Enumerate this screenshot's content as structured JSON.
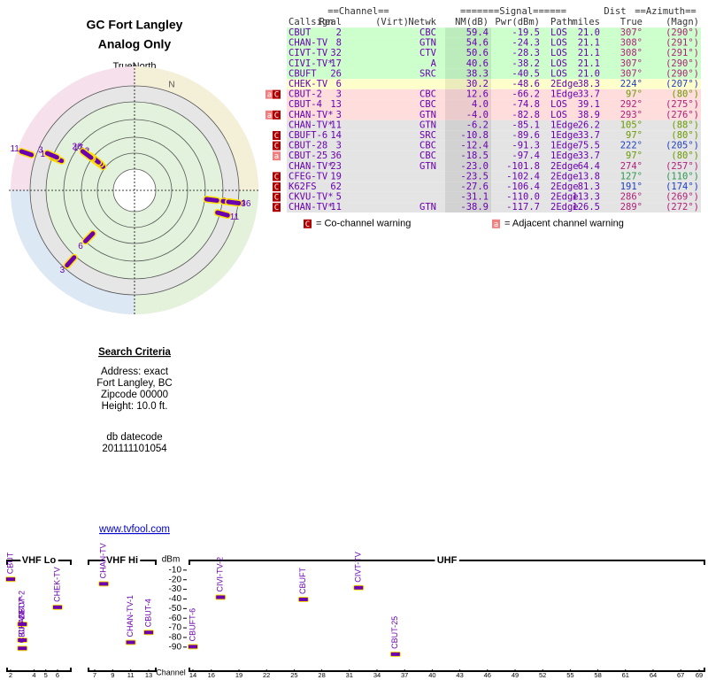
{
  "header": {
    "title": "GC Fort Langley",
    "subtitle": "Analog Only"
  },
  "polar": {
    "true_north": "TrueNorth",
    "north": "N",
    "markers": [
      {
        "label": "2",
        "azimuth": 307,
        "nm": 59.4
      },
      {
        "label": "8",
        "azimuth": 308,
        "nm": 54.6
      },
      {
        "label": "32",
        "azimuth": 308,
        "nm": 50.6
      },
      {
        "label": "17",
        "azimuth": 307,
        "nm": 40.6
      },
      {
        "label": "26",
        "azimuth": 307,
        "nm": 38.3
      },
      {
        "label": "6",
        "azimuth": 224,
        "nm": 30.2
      },
      {
        "label": "3",
        "azimuth": 97,
        "nm": 12.6
      },
      {
        "label": "13",
        "azimuth": 292,
        "nm": 4.0
      },
      {
        "label": "3",
        "azimuth": 293,
        "nm": -4.0
      },
      {
        "label": "11",
        "azimuth": 105,
        "nm": -6.2
      },
      {
        "label": "14",
        "azimuth": 97,
        "nm": -10.8
      },
      {
        "label": "3",
        "azimuth": 222,
        "nm": -12.4
      },
      {
        "label": "36",
        "azimuth": 97,
        "nm": -18.5
      },
      {
        "label": "11",
        "azimuth": 289,
        "nm": -38.9
      }
    ]
  },
  "table": {
    "group_headers": [
      "==Channel==",
      "=======Signal======",
      "Dist",
      "==Azimuth=="
    ],
    "headers": [
      "Callsign",
      "Real",
      "(Virt)",
      "Netwk",
      "NM(dB)",
      "Pwr(dBm)",
      "Path",
      "miles",
      "True",
      "(Magn)"
    ],
    "rows": [
      {
        "callsign": "CBUT",
        "real": "2",
        "netwk": "CBC",
        "nm": "59.4",
        "pwr": "-19.5",
        "path": "LOS",
        "dist": "21.0",
        "true_az": "307°",
        "magn_az": "(290°)",
        "color": "#ccffcc",
        "az_color": "#b0207a"
      },
      {
        "callsign": "CHAN-TV",
        "real": "8",
        "netwk": "GTN",
        "nm": "54.6",
        "pwr": "-24.3",
        "path": "LOS",
        "dist": "21.1",
        "true_az": "308°",
        "magn_az": "(291°)",
        "color": "#ccffcc",
        "az_color": "#b0207a"
      },
      {
        "callsign": "CIVT-TV",
        "real": "32",
        "netwk": "CTV",
        "nm": "50.6",
        "pwr": "-28.3",
        "path": "LOS",
        "dist": "21.1",
        "true_az": "308°",
        "magn_az": "(291°)",
        "color": "#ccffcc",
        "az_color": "#b0207a"
      },
      {
        "callsign": "CIVI-TV*",
        "real": "17",
        "netwk": "A",
        "nm": "40.6",
        "pwr": "-38.2",
        "path": "LOS",
        "dist": "21.1",
        "true_az": "307°",
        "magn_az": "(290°)",
        "color": "#ccffcc",
        "az_color": "#b0207a"
      },
      {
        "callsign": "CBUFT",
        "real": "26",
        "netwk": "SRC",
        "nm": "38.3",
        "pwr": "-40.5",
        "path": "LOS",
        "dist": "21.0",
        "true_az": "307°",
        "magn_az": "(290°)",
        "color": "#ccffcc",
        "az_color": "#b0207a"
      },
      {
        "callsign": "CHEK-TV",
        "real": "6",
        "nm": "30.2",
        "pwr": "-48.6",
        "path": "2Edge",
        "dist": "38.3",
        "true_az": "224°",
        "magn_az": "(207°)",
        "color": "#ffffcc",
        "az_color": "#1f3fbf"
      },
      {
        "callsign": "CBUT-2",
        "real": "3",
        "netwk": "CBC",
        "nm": "12.6",
        "pwr": "-66.2",
        "path": "1Edge",
        "dist": "33.7",
        "true_az": "97°",
        "magn_az": "(80°)",
        "color": "#ffdddd",
        "az_color": "#6a9a00",
        "warnings": [
          "a",
          "C"
        ]
      },
      {
        "callsign": "CBUT-4",
        "real": "13",
        "netwk": "CBC",
        "nm": "4.0",
        "pwr": "-74.8",
        "path": "LOS",
        "dist": "39.1",
        "true_az": "292°",
        "magn_az": "(275°)",
        "color": "#ffdddd",
        "az_color": "#b0207a"
      },
      {
        "callsign": "CHAN-TV*",
        "real": "3",
        "netwk": "GTN",
        "nm": "-4.0",
        "pwr": "-82.8",
        "path": "LOS",
        "dist": "38.9",
        "true_az": "293°",
        "magn_az": "(276°)",
        "color": "#ffdddd",
        "az_color": "#b0207a",
        "warnings": [
          "a",
          "C"
        ]
      },
      {
        "callsign": "CHAN-TV*",
        "real": "11",
        "netwk": "GTN",
        "nm": "-6.2",
        "pwr": "-85.1",
        "path": "1Edge",
        "dist": "26.2",
        "true_az": "105°",
        "magn_az": "(88°)",
        "color": "#e4e4e4",
        "az_color": "#6a9a00"
      },
      {
        "callsign": "CBUFT-6",
        "real": "14",
        "netwk": "SRC",
        "nm": "-10.8",
        "pwr": "-89.6",
        "path": "1Edge",
        "dist": "33.7",
        "true_az": "97°",
        "magn_az": "(80°)",
        "color": "#e4e4e4",
        "az_color": "#6a9a00",
        "warnings": [
          "C"
        ]
      },
      {
        "callsign": "CBUT-28",
        "real": "3",
        "netwk": "CBC",
        "nm": "-12.4",
        "pwr": "-91.3",
        "path": "1Edge",
        "dist": "75.5",
        "true_az": "222°",
        "magn_az": "(205°)",
        "color": "#e4e4e4",
        "az_color": "#1f3fbf",
        "warnings": [
          "C"
        ]
      },
      {
        "callsign": "CBUT-25",
        "real": "36",
        "netwk": "CBC",
        "nm": "-18.5",
        "pwr": "-97.4",
        "path": "1Edge",
        "dist": "33.7",
        "true_az": "97°",
        "magn_az": "(80°)",
        "color": "#e4e4e4",
        "az_color": "#6a9a00",
        "warnings": [
          "a"
        ]
      },
      {
        "callsign": "CHAN-TV*",
        "real": "23",
        "netwk": "GTN",
        "nm": "-23.0",
        "pwr": "-101.8",
        "path": "2Edge",
        "dist": "64.4",
        "true_az": "274°",
        "magn_az": "(257°)",
        "color": "#e4e4e4",
        "az_color": "#b0207a"
      },
      {
        "callsign": "CFEG-TV",
        "real": "19",
        "nm": "-23.5",
        "pwr": "-102.4",
        "path": "2Edge",
        "dist": "13.8",
        "true_az": "127°",
        "magn_az": "(110°)",
        "color": "#e4e4e4",
        "az_color": "#2a9a50",
        "warnings": [
          "C"
        ]
      },
      {
        "callsign": "K62FS",
        "real": "62",
        "nm": "-27.6",
        "pwr": "-106.4",
        "path": "2Edge",
        "dist": "81.3",
        "true_az": "191°",
        "magn_az": "(174°)",
        "color": "#e4e4e4",
        "az_color": "#1f3fbf",
        "warnings": [
          "C"
        ]
      },
      {
        "callsign": "CKVU-TV*",
        "real": "5",
        "nm": "-31.1",
        "pwr": "-110.0",
        "path": "2Edge",
        "dist": "113.3",
        "true_az": "286°",
        "magn_az": "(269°)",
        "color": "#e4e4e4",
        "az_color": "#b0207a",
        "warnings": [
          "C"
        ]
      },
      {
        "callsign": "CHAN-TV*",
        "real": "11",
        "netwk": "GTN",
        "nm": "-38.9",
        "pwr": "-117.7",
        "path": "2Edge",
        "dist": "126.5",
        "true_az": "289°",
        "magn_az": "(272°)",
        "color": "#e4e4e4",
        "az_color": "#b0207a",
        "warnings": [
          "C"
        ]
      }
    ],
    "legend": [
      {
        "icon": "C",
        "text": "= Co-channel warning"
      },
      {
        "icon": "a",
        "text": "= Adjacent channel warning"
      }
    ]
  },
  "search": {
    "title": "Search Criteria",
    "lines": [
      "Address: exact",
      "Fort Langley, BC",
      "Zipcode 00000",
      "Height: 10.0 ft."
    ],
    "datecode_label": "db datecode",
    "datecode": "201111101054"
  },
  "link": "www.tvfool.com",
  "chart_data": {
    "type": "spectrum",
    "y_label": "dBm",
    "x_label": "Channel",
    "ylim": [
      -115,
      0
    ],
    "yticks": [
      -10,
      -20,
      -30,
      -40,
      -50,
      -60,
      -70,
      -80,
      -90
    ],
    "sections": [
      {
        "name": "VHF Lo",
        "xlim": [
          2,
          6
        ],
        "xticks": [
          2,
          4,
          5,
          6
        ]
      },
      {
        "name": "VHF Hi",
        "xlim": [
          7,
          13
        ],
        "xticks": [
          7,
          9,
          11,
          13
        ]
      },
      {
        "name": "UHF",
        "xlim": [
          14,
          69
        ],
        "xticks": [
          14,
          16,
          19,
          22,
          25,
          28,
          31,
          34,
          37,
          40,
          43,
          46,
          49,
          52,
          55,
          58,
          61,
          64,
          67,
          69
        ]
      }
    ],
    "stations": [
      {
        "label": "CBUT",
        "channel": 2,
        "dbm": -19.5
      },
      {
        "label": "CBUT-2",
        "channel": 3,
        "dbm": -66.2
      },
      {
        "label": "CHAN-TV*",
        "channel": 3,
        "dbm": -82.8
      },
      {
        "label": "CBUT-28",
        "channel": 3,
        "dbm": -91.3
      },
      {
        "label": "CHEK-TV",
        "channel": 6,
        "dbm": -48.6
      },
      {
        "label": "CHAN-TV",
        "channel": 8,
        "dbm": -24.3
      },
      {
        "label": "CHAN-TV-1",
        "channel": 11,
        "dbm": -85.1
      },
      {
        "label": "CBUT-4",
        "channel": 13,
        "dbm": -74.8
      },
      {
        "label": "CBUFT-6",
        "channel": 14,
        "dbm": -89.6
      },
      {
        "label": "CIVI-TV-2",
        "channel": 17,
        "dbm": -38.2
      },
      {
        "label": "CBUFT",
        "channel": 26,
        "dbm": -40.5
      },
      {
        "label": "CIVT-TV",
        "channel": 32,
        "dbm": -28.3
      },
      {
        "label": "CBUT-25",
        "channel": 36,
        "dbm": -97.4
      }
    ]
  }
}
